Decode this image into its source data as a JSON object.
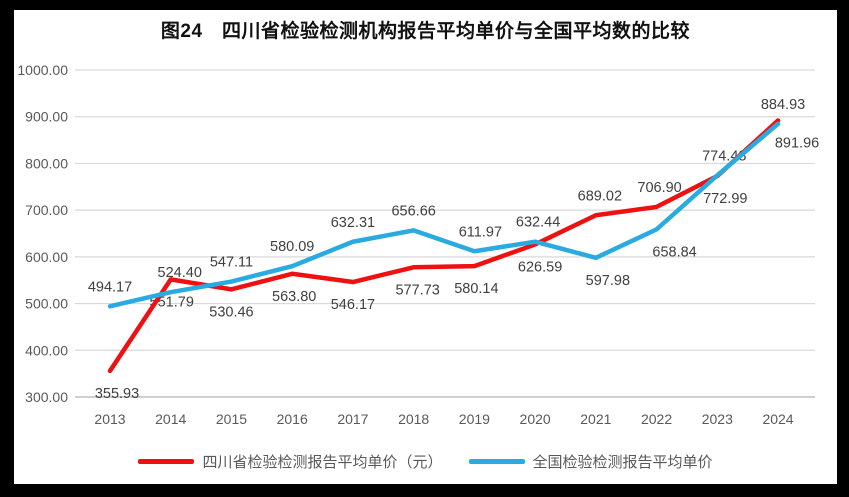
{
  "window": {
    "frame_bg": "#000000",
    "panel_bg": "#ffffff"
  },
  "chart_data": {
    "type": "line",
    "title": "图24　四川省检验检测机构报告平均单价与全国平均数的比较",
    "categories": [
      "2013",
      "2014",
      "2015",
      "2016",
      "2017",
      "2018",
      "2019",
      "2020",
      "2021",
      "2022",
      "2023",
      "2024"
    ],
    "series": [
      {
        "name": "四川省检验检测报告平均单价（元）",
        "color": "#ee1111",
        "values": [
          355.93,
          551.79,
          530.46,
          563.8,
          546.17,
          577.73,
          580.14,
          626.59,
          689.02,
          706.9,
          772.99,
          891.96
        ],
        "label_side": [
          "below",
          "below",
          "below",
          "below",
          "below",
          "below",
          "below",
          "below",
          "above",
          "above",
          "below",
          "below"
        ],
        "label_dx": [
          7,
          1,
          0,
          2,
          0,
          4,
          2,
          5,
          4,
          3,
          8,
          19
        ]
      },
      {
        "name": "全国检验检测报告平均单价",
        "color": "#29abe2",
        "values": [
          494.17,
          524.4,
          547.11,
          580.09,
          632.31,
          656.66,
          611.97,
          632.44,
          597.98,
          658.84,
          774.48,
          884.93
        ],
        "label_side": [
          "above",
          "above",
          "above",
          "above",
          "above",
          "above",
          "above",
          "above",
          "below",
          "below",
          "above",
          "above"
        ],
        "label_dx": [
          0,
          9,
          0,
          0,
          0,
          0,
          6,
          3,
          12,
          18,
          7,
          5
        ]
      }
    ],
    "ylim": [
      300,
      1000
    ],
    "ytick_step": 100,
    "ytick_labels": [
      "1000.00",
      "900.00",
      "800.00",
      "700.00",
      "600.00",
      "500.00",
      "400.00",
      "300.00"
    ],
    "grid": true,
    "legend_position": "bottom",
    "colors": {
      "grid": "#d9d9d9",
      "axis_line": "#bfbfbf",
      "tick_text": "#595959",
      "data_label_text": "#404040",
      "title_text": "#111111",
      "legend_text": "#595959"
    }
  }
}
